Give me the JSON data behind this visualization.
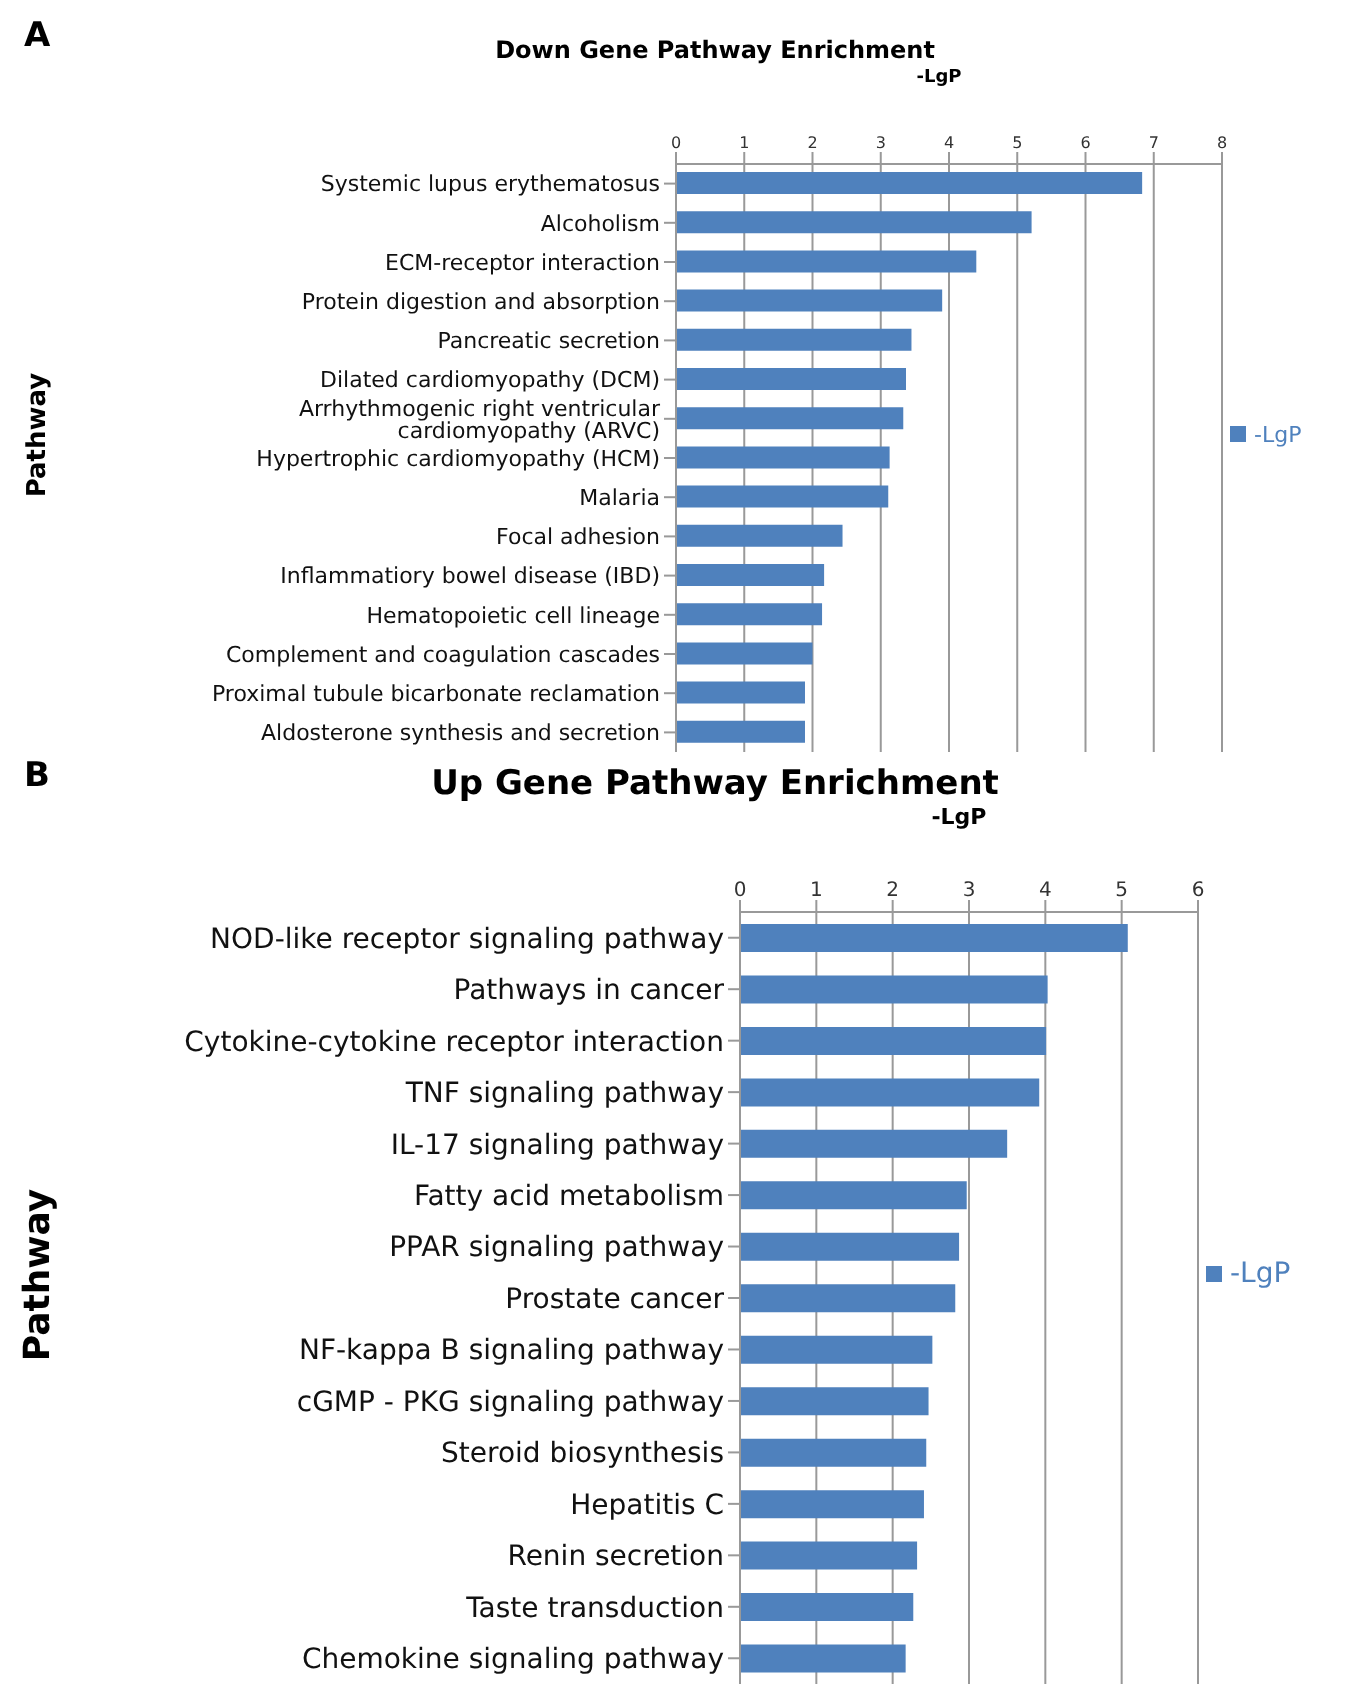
{
  "chart_data": [
    {
      "type": "bar",
      "orientation": "horizontal",
      "title": "Down Gene Pathway Enrichment",
      "xlabel": "-LgP",
      "ylabel": "Pathway",
      "annotations": [
        "A"
      ],
      "categories": [
        "Systemic lupus erythematosus",
        "Alcoholism",
        "ECM-receptor interaction",
        "Protein digestion and absorption",
        "Pancreatic secretion",
        "Dilated cardiomyopathy (DCM)",
        "Arrhythmogenic right ventricular cardiomyopathy (ARVC)",
        "Hypertrophic cardiomyopathy (HCM)",
        "Malaria",
        "Focal adhesion",
        "Inflammatiory bowel disease (IBD)",
        "Hematopoietic cell lineage",
        "Complement and coagulation cascades",
        "Proximal tubule bicarbonate reclamation",
        "Aldosterone synthesis and secretion"
      ],
      "series": [
        {
          "name": "-LgP",
          "color": "#4f81bd",
          "values": [
            6.83,
            5.21,
            4.4,
            3.9,
            3.45,
            3.37,
            3.33,
            3.13,
            3.11,
            2.44,
            2.17,
            2.14,
            2.0,
            1.89,
            1.89
          ]
        }
      ],
      "xlim": [
        0,
        8
      ],
      "xticks": [
        0,
        1,
        2,
        3,
        4,
        5,
        6,
        7,
        8
      ],
      "grid": "x",
      "legend": "right"
    },
    {
      "type": "bar",
      "orientation": "horizontal",
      "title": "Up Gene Pathway Enrichment",
      "xlabel": "-LgP",
      "ylabel": "Pathway",
      "annotations": [
        "B"
      ],
      "categories": [
        "NOD-like receptor signaling pathway",
        "Pathways in cancer",
        "Cytokine-cytokine receptor interaction",
        "TNF signaling pathway",
        "IL-17 signaling pathway",
        "Fatty acid metabolism",
        "PPAR signaling pathway",
        "Prostate cancer",
        "NF-kappa B signaling pathway",
        "cGMP - PKG signaling pathway",
        "Steroid biosynthesis",
        "Hepatitis C",
        "Renin secretion",
        "Taste transduction",
        "Chemokine signaling pathway"
      ],
      "series": [
        {
          "name": "-LgP",
          "color": "#4f81bd",
          "values": [
            5.08,
            4.03,
            4.01,
            3.92,
            3.5,
            2.97,
            2.87,
            2.82,
            2.52,
            2.47,
            2.44,
            2.41,
            2.32,
            2.27,
            2.17
          ]
        }
      ],
      "xlim": [
        0,
        6
      ],
      "xticks": [
        0,
        1,
        2,
        3,
        4,
        5,
        6
      ],
      "grid": "x",
      "legend": "right"
    }
  ]
}
